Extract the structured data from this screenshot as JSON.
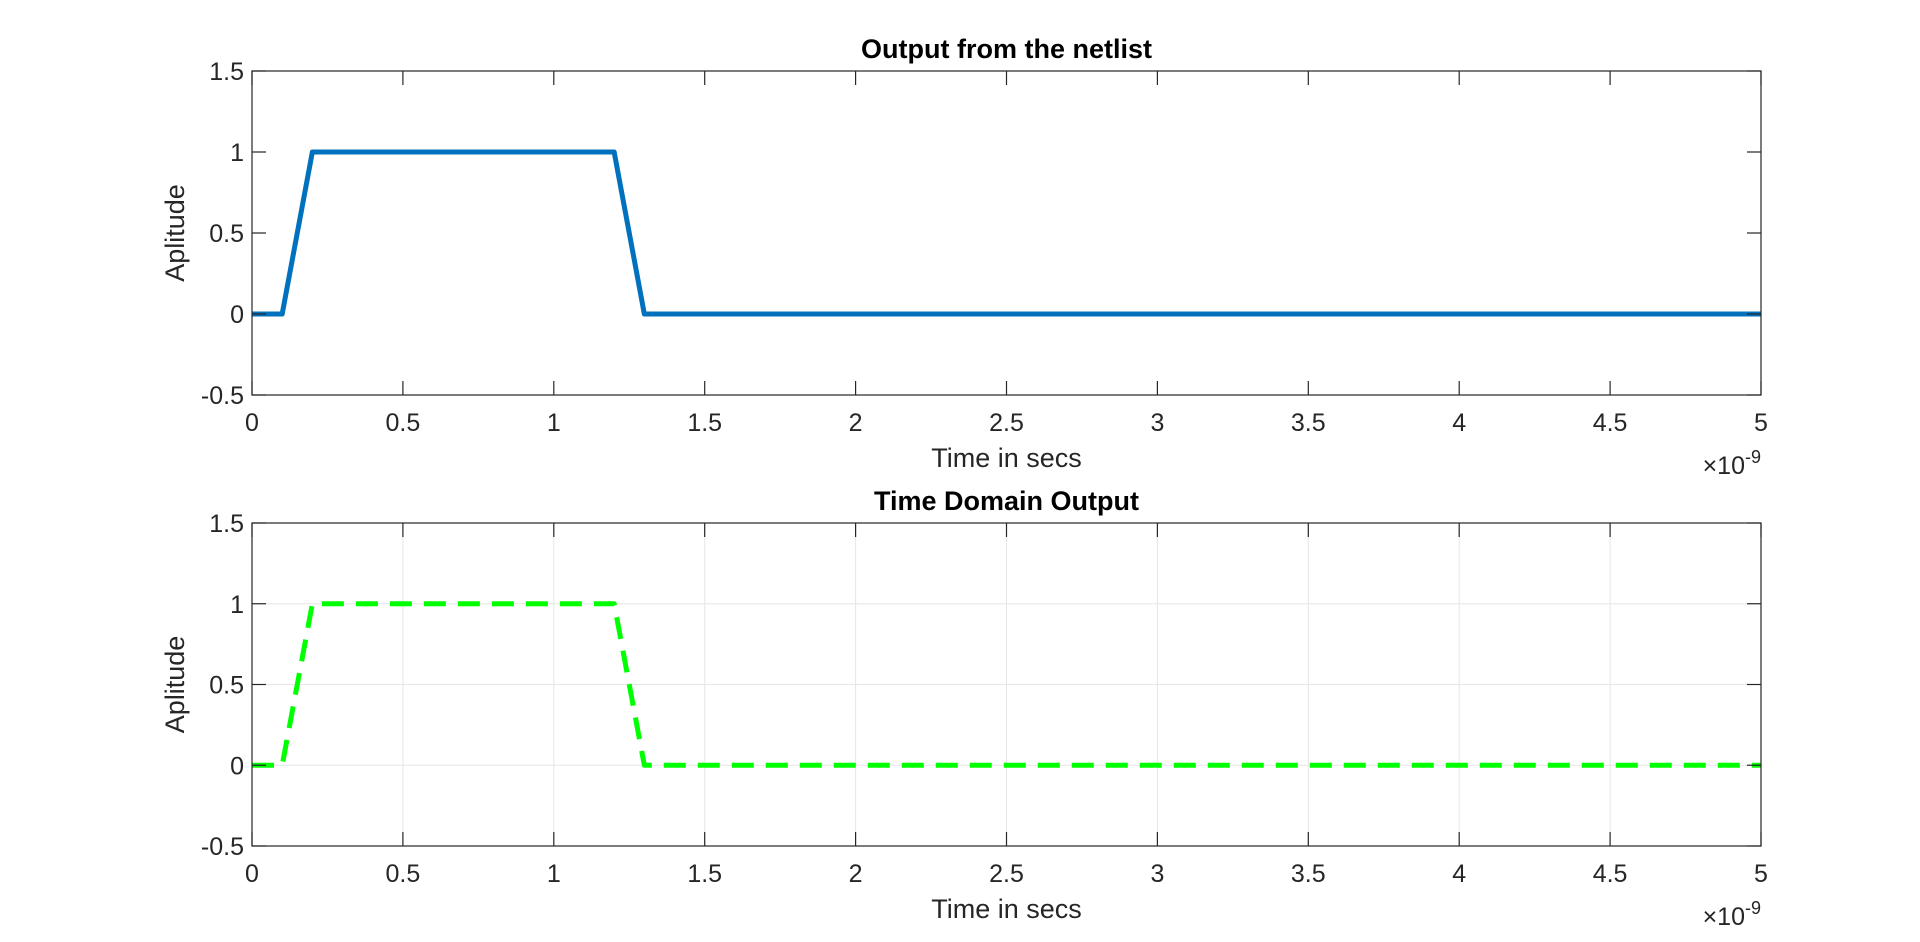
{
  "chart_data": [
    {
      "type": "line",
      "title": "Output from the netlist",
      "xlabel": "Time in secs",
      "ylabel": "Aplitude",
      "x_exponent": {
        "base": "×10",
        "power": "-9"
      },
      "xlim": [
        0,
        5e-09
      ],
      "ylim": [
        -0.5,
        1.5
      ],
      "xticks": [
        0,
        0.5,
        1,
        1.5,
        2,
        2.5,
        3,
        3.5,
        4,
        4.5,
        5
      ],
      "yticks": [
        -0.5,
        0,
        0.5,
        1,
        1.5
      ],
      "grid": false,
      "series": [
        {
          "color": "#0072BD",
          "line_style": "solid",
          "x": [
            0,
            1e-10,
            2e-10,
            1.2e-09,
            1.3e-09,
            5e-09
          ],
          "y": [
            0,
            0,
            1,
            1,
            0,
            0
          ]
        }
      ]
    },
    {
      "type": "line",
      "title": "Time Domain Output",
      "xlabel": "Time in secs",
      "ylabel": "Aplitude",
      "x_exponent": {
        "base": "×10",
        "power": "-9"
      },
      "xlim": [
        0,
        5e-09
      ],
      "ylim": [
        -0.5,
        1.5
      ],
      "xticks": [
        0,
        0.5,
        1,
        1.5,
        2,
        2.5,
        3,
        3.5,
        4,
        4.5,
        5
      ],
      "yticks": [
        -0.5,
        0,
        0.5,
        1,
        1.5
      ],
      "grid": true,
      "series": [
        {
          "color": "#00FF00",
          "line_style": "dashed",
          "x": [
            0,
            1e-10,
            2e-10,
            1.2e-09,
            1.3e-09,
            5e-09
          ],
          "y": [
            0,
            0,
            1,
            1,
            0,
            0
          ]
        }
      ]
    }
  ]
}
